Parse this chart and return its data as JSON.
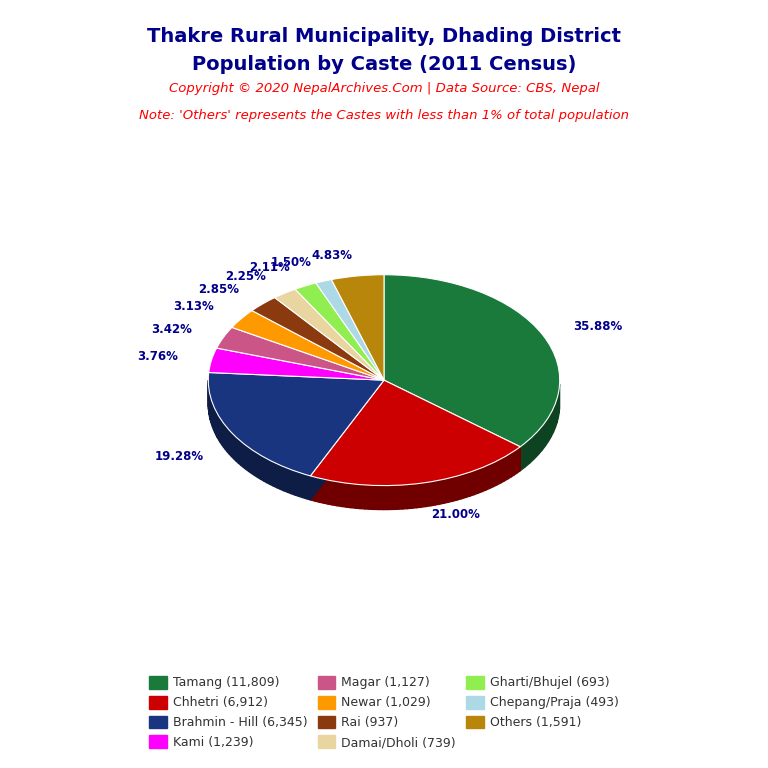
{
  "title_line1": "Thakre Rural Municipality, Dhading District",
  "title_line2": "Population by Caste (2011 Census)",
  "title_color": "#00008B",
  "copyright_text": "Copyright © 2020 NepalArchives.Com | Data Source: CBS, Nepal",
  "note_text": "Note: 'Others' represents the Castes with less than 1% of total population",
  "subtitle_color": "#FF0000",
  "label_color": "#00008B",
  "background_color": "#FFFFFF",
  "labels": [
    "Tamang (11,809)",
    "Chhetri (6,912)",
    "Brahmin - Hill (6,345)",
    "Kami (1,239)",
    "Magar (1,127)",
    "Newar (1,029)",
    "Rai (937)",
    "Damai/Dholi (739)",
    "Gharti/Bhujel (693)",
    "Chepang/Praja (493)",
    "Others (1,591)"
  ],
  "values": [
    11809,
    6912,
    6345,
    1239,
    1127,
    1029,
    937,
    739,
    693,
    493,
    1591
  ],
  "percentages": [
    "35.88%",
    "21.00%",
    "19.28%",
    "3.76%",
    "3.42%",
    "3.13%",
    "2.85%",
    "2.25%",
    "2.11%",
    "1.50%",
    "4.83%"
  ],
  "colors": [
    "#1A7A3C",
    "#CC0000",
    "#1A3580",
    "#FF00FF",
    "#CC5588",
    "#FF9900",
    "#8B3A10",
    "#E8D5A0",
    "#90EE50",
    "#ADD8E6",
    "#B8860B"
  ],
  "startangle": 90,
  "legend_order": [
    0,
    1,
    2,
    3,
    4,
    5,
    6,
    7,
    8,
    9,
    10
  ]
}
